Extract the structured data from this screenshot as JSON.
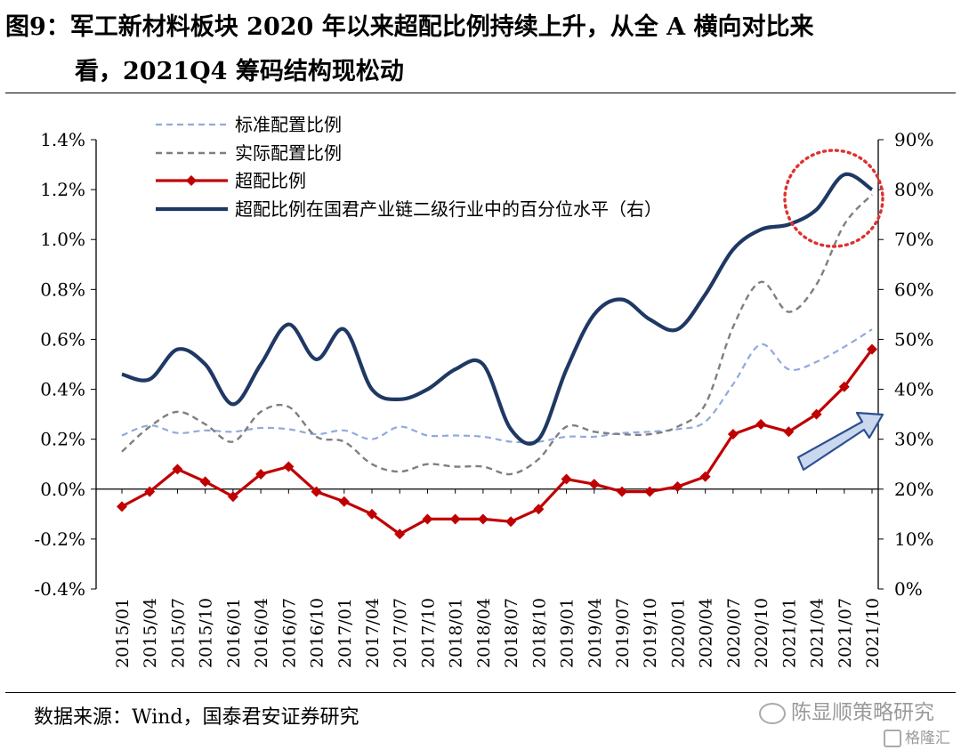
{
  "figure": {
    "title_line1": "图9：军工新材料板块 2020 年以来超配比例持续上升，从全 A 横向对比来",
    "title_line2": "看，2021Q4 筹码结构现松动",
    "source": "数据来源：Wind，国泰君安证券研究",
    "watermark": "陈显顺策略研究",
    "watermark2": "格隆汇"
  },
  "chart_data": {
    "type": "line",
    "categories": [
      "2015/01",
      "2015/04",
      "2015/07",
      "2015/10",
      "2016/01",
      "2016/04",
      "2016/07",
      "2016/10",
      "2017/01",
      "2017/04",
      "2017/07",
      "2017/10",
      "2018/01",
      "2018/04",
      "2018/07",
      "2018/10",
      "2019/01",
      "2019/04",
      "2019/07",
      "2019/10",
      "2020/01",
      "2020/04",
      "2020/07",
      "2020/10",
      "2021/01",
      "2021/04",
      "2021/07",
      "2021/10"
    ],
    "x_tick_labels": [
      "2015/01",
      "2015/04",
      "2015/07",
      "2015/10",
      "2016/01",
      "2016/04",
      "2016/07",
      "2016/10",
      "2017/01",
      "2017/04",
      "2017/07",
      "2017/10",
      "2018/01",
      "2018/04",
      "2018/07",
      "2018/10",
      "2019/01",
      "2019/04",
      "2019/07",
      "2019/10",
      "2020/01",
      "2020/04",
      "2020/07",
      "2020/10",
      "2021/01",
      "2021/04",
      "2021/07",
      "2021/10"
    ],
    "y_left": {
      "ylim": [
        -0.004,
        0.014
      ],
      "ticks": [
        "-0.4%",
        "-0.2%",
        "0.0%",
        "0.2%",
        "0.4%",
        "0.6%",
        "0.8%",
        "1.0%",
        "1.2%",
        "1.4%"
      ]
    },
    "y_right": {
      "ylim": [
        0,
        0.9
      ],
      "ticks": [
        "0%",
        "10%",
        "20%",
        "30%",
        "40%",
        "50%",
        "60%",
        "70%",
        "80%",
        "90%"
      ]
    },
    "series": [
      {
        "name": "标准配置比例",
        "axis": "left",
        "color": "#8faadc",
        "style": "dashed",
        "marker": "none",
        "values": [
          0.00215,
          0.00255,
          0.00225,
          0.00235,
          0.0023,
          0.00245,
          0.0024,
          0.0022,
          0.00235,
          0.002,
          0.0025,
          0.00215,
          0.00215,
          0.0021,
          0.0019,
          0.0019,
          0.0021,
          0.0021,
          0.00225,
          0.0023,
          0.0024,
          0.0027,
          0.0042,
          0.0058,
          0.0048,
          0.0051,
          0.0057,
          0.0064
        ]
      },
      {
        "name": "实际配置比例",
        "axis": "left",
        "color": "#7f7f7f",
        "style": "dashed",
        "marker": "none",
        "values": [
          0.0015,
          0.0025,
          0.0031,
          0.0026,
          0.0019,
          0.0031,
          0.0033,
          0.0021,
          0.0019,
          0.001,
          0.0007,
          0.001,
          0.0009,
          0.0009,
          0.0006,
          0.0012,
          0.0025,
          0.0023,
          0.0022,
          0.0022,
          0.0025,
          0.0034,
          0.0065,
          0.0083,
          0.0071,
          0.0082,
          0.0106,
          0.0118
        ]
      },
      {
        "name": "超配比例",
        "axis": "left",
        "color": "#c00000",
        "style": "solid",
        "marker": "diamond",
        "values": [
          -0.0007,
          -0.0001,
          0.0008,
          0.0003,
          -0.0003,
          0.0006,
          0.0009,
          -0.0001,
          -0.0005,
          -0.001,
          -0.0018,
          -0.0012,
          -0.0012,
          -0.0012,
          -0.0013,
          -0.0008,
          0.0004,
          0.0002,
          -0.0001,
          -0.0001,
          0.0001,
          0.0005,
          0.0022,
          0.0026,
          0.0023,
          0.003,
          0.0041,
          0.0056
        ]
      },
      {
        "name": "超配比例在国君产业链二级行业中的百分位水平（右）",
        "axis": "right",
        "color": "#1f3864",
        "style": "solid",
        "marker": "none",
        "values": [
          0.43,
          0.42,
          0.48,
          0.45,
          0.37,
          0.45,
          0.53,
          0.46,
          0.52,
          0.4,
          0.38,
          0.4,
          0.44,
          0.45,
          0.32,
          0.3,
          0.44,
          0.55,
          0.58,
          0.54,
          0.52,
          0.59,
          0.68,
          0.72,
          0.73,
          0.76,
          0.83,
          0.8
        ]
      }
    ],
    "annotations": [
      {
        "kind": "ellipse",
        "style": "dotted",
        "color": "#e03030",
        "note": "highlight of latest peak"
      },
      {
        "kind": "arrow",
        "direction": "up-right",
        "color": "#c6d6ef"
      }
    ],
    "legend_position": "top-left",
    "grid": false
  }
}
